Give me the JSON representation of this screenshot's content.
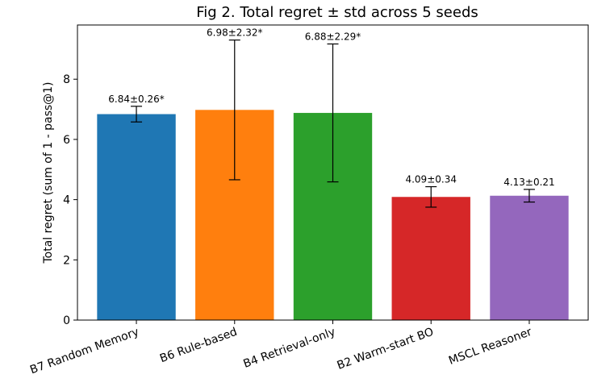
{
  "chart_data": {
    "type": "bar",
    "title": "Fig 2. Total regret ± std across 5 seeds",
    "ylabel": "Total regret (sum of 1 - pass@1)",
    "xlabel": "",
    "ylim": [
      0,
      9.8
    ],
    "yticks": [
      0,
      2,
      4,
      6,
      8
    ],
    "grid": false,
    "categories": [
      "B7 Random Memory",
      "B6 Rule-based",
      "B4 Retrieval-only",
      "B2 Warm-start BO",
      "MSCL Reasoner"
    ],
    "values": [
      6.84,
      6.98,
      6.88,
      4.09,
      4.13
    ],
    "errors": [
      0.26,
      2.32,
      2.29,
      0.34,
      0.21
    ],
    "data_labels": [
      "6.84±0.26*",
      "6.98±2.32*",
      "6.88±2.29*",
      "4.09±0.34",
      "4.13±0.21"
    ],
    "colors": [
      "#1f77b4",
      "#ff7f0e",
      "#2ca02c",
      "#d62728",
      "#9467bd"
    ]
  }
}
